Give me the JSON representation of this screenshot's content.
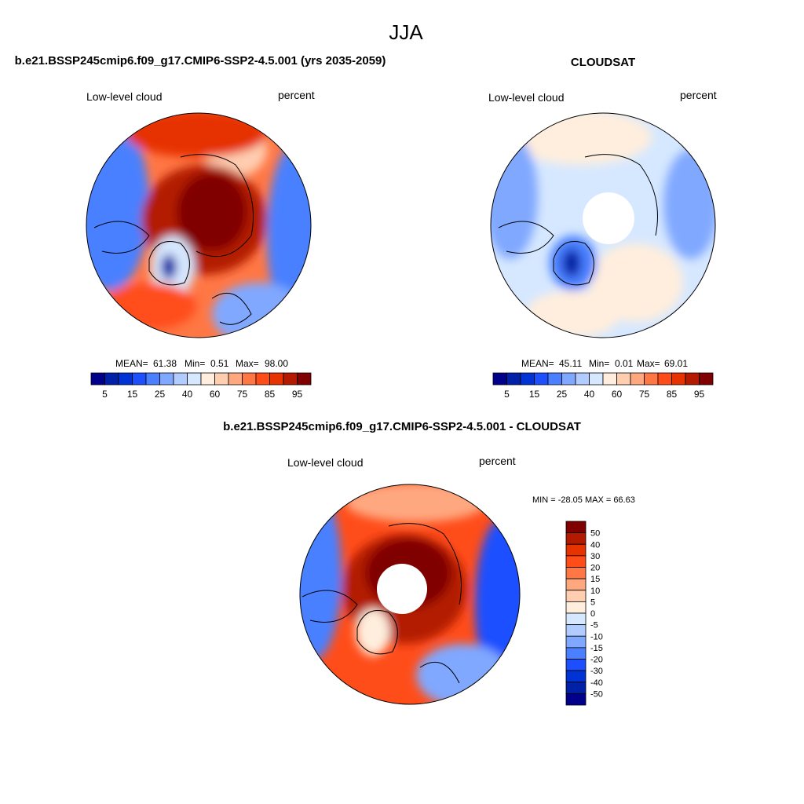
{
  "title": "JJA",
  "chart_data": [
    {
      "type": "heatmap",
      "projection": "north-polar-stereographic",
      "title": "b.e21.BSSP245cmip6.f09_g17.CMIP6-SSP2-4.5.001 (yrs 2035-2059)",
      "left_label": "Low-level cloud",
      "right_label": "percent",
      "stats": {
        "mean_label": "MEAN=",
        "mean": "61.38",
        "min_label": "Min=",
        "min": "0.51",
        "max_label": "Max=",
        "max": "98.00"
      },
      "colorbar": {
        "levels": [
          5,
          10,
          15,
          20,
          25,
          30,
          40,
          50,
          60,
          70,
          75,
          80,
          85,
          90,
          95
        ],
        "tick_labels": [
          "5",
          "15",
          "25",
          "40",
          "60",
          "75",
          "85",
          "95"
        ],
        "orientation": "horizontal"
      }
    },
    {
      "type": "heatmap",
      "projection": "north-polar-stereographic",
      "title": "CLOUDSAT",
      "left_label": "Low-level cloud",
      "right_label": "percent",
      "stats": {
        "mean_label": "MEAN=",
        "mean": "45.11",
        "min_label": "Min=",
        "min": "0.01",
        "max_label": "Max=",
        "max": "69.01"
      },
      "colorbar": {
        "levels": [
          5,
          10,
          15,
          20,
          25,
          30,
          40,
          50,
          60,
          70,
          75,
          80,
          85,
          90,
          95
        ],
        "tick_labels": [
          "5",
          "15",
          "25",
          "40",
          "60",
          "75",
          "85",
          "95"
        ],
        "orientation": "horizontal"
      }
    },
    {
      "type": "heatmap",
      "projection": "north-polar-stereographic",
      "title": "b.e21.BSSP245cmip6.f09_g17.CMIP6-SSP2-4.5.001 - CLOUDSAT",
      "left_label": "Low-level cloud",
      "right_label": "percent",
      "stats_text": "MIN = -28.05 MAX =  66.63",
      "colorbar": {
        "levels": [
          -50,
          -40,
          -30,
          -20,
          -15,
          -10,
          -5,
          0,
          5,
          10,
          15,
          20,
          30,
          40,
          50
        ],
        "tick_labels": [
          "50",
          "40",
          "30",
          "20",
          "15",
          "10",
          "5",
          "0",
          "-5",
          "-10",
          "-15",
          "-20",
          "-30",
          "-40",
          "-50"
        ],
        "orientation": "vertical"
      }
    }
  ],
  "colors": [
    "#00008b",
    "#0020a8",
    "#0033d6",
    "#1e4fff",
    "#4a80ff",
    "#80a8ff",
    "#b3ccff",
    "#d6e8ff",
    "#ffeedd",
    "#ffcdb0",
    "#ffa880",
    "#ff7744",
    "#ff4d1a",
    "#e63300",
    "#b31a00",
    "#800000"
  ]
}
